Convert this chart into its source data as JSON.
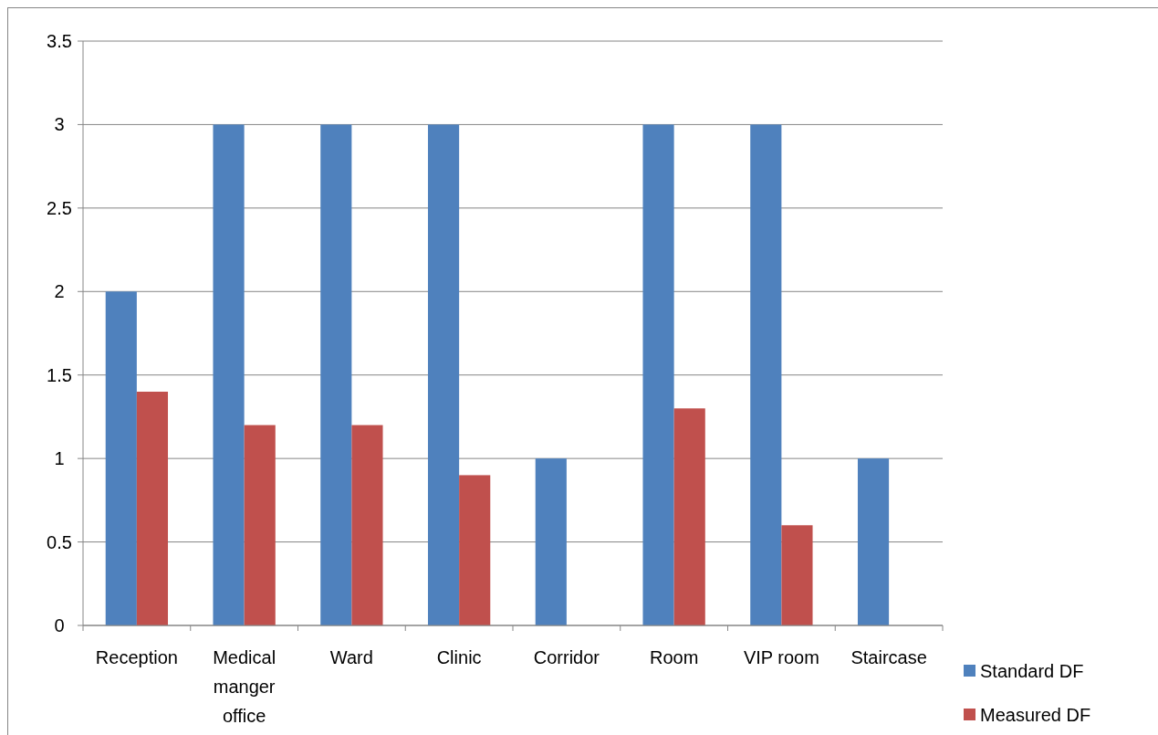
{
  "chart_data": {
    "type": "bar",
    "categories": [
      "Reception",
      "Medical manger office",
      "Ward",
      "Clinic",
      "Corridor",
      "Room",
      "VIP room",
      "Staircase"
    ],
    "series": [
      {
        "name": "Standard DF",
        "color": "#4f81bd",
        "values": [
          2,
          3,
          3,
          3,
          1,
          3,
          3,
          1
        ]
      },
      {
        "name": "Measured DF",
        "color": "#c0504d",
        "values": [
          1.4,
          1.2,
          1.2,
          0.9,
          null,
          1.3,
          0.6,
          null
        ]
      }
    ],
    "ylim": [
      0,
      3.5
    ],
    "yticks": [
      0,
      0.5,
      1,
      1.5,
      2,
      2.5,
      3,
      3.5
    ],
    "grid": "y",
    "legend": "right"
  }
}
